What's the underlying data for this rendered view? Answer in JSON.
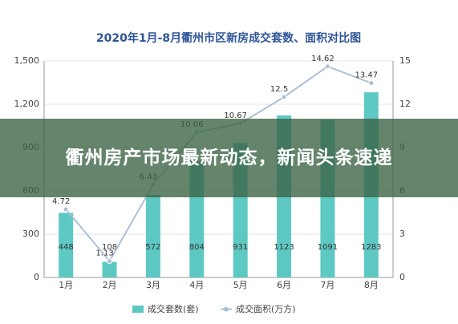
{
  "chart_data": {
    "type": "bar",
    "title": "2020年1月-8月衢州市区新房成交套数、面积对比图",
    "categories": [
      "1月",
      "2月",
      "3月",
      "4月",
      "5月",
      "6月",
      "7月",
      "8月"
    ],
    "series": [
      {
        "name": "成交套数(套)",
        "type": "bar",
        "color": "#5ec8c2",
        "values": [
          448,
          108,
          572,
          804,
          931,
          1123,
          1091,
          1283
        ]
      },
      {
        "name": "成交面积(万方)",
        "type": "line",
        "axis": "y2",
        "color": "#aebfd3",
        "values": [
          4.72,
          1.13,
          6.43,
          10.06,
          10.67,
          12.5,
          14.62,
          13.47
        ]
      }
    ],
    "ylim": [
      0,
      1500
    ],
    "yticks": [
      0,
      300,
      600,
      900,
      {
        "value": 1200,
        "label": "1,200"
      },
      {
        "value": 1500,
        "label": "1,500"
      }
    ],
    "y2lim": [
      0,
      15
    ],
    "y2ticks": [
      0,
      3,
      6,
      9,
      12,
      15
    ],
    "grid": true,
    "legend": "bottom"
  },
  "banner": {
    "headline": "衢州房产市场最新动态，新闻头条速递"
  }
}
